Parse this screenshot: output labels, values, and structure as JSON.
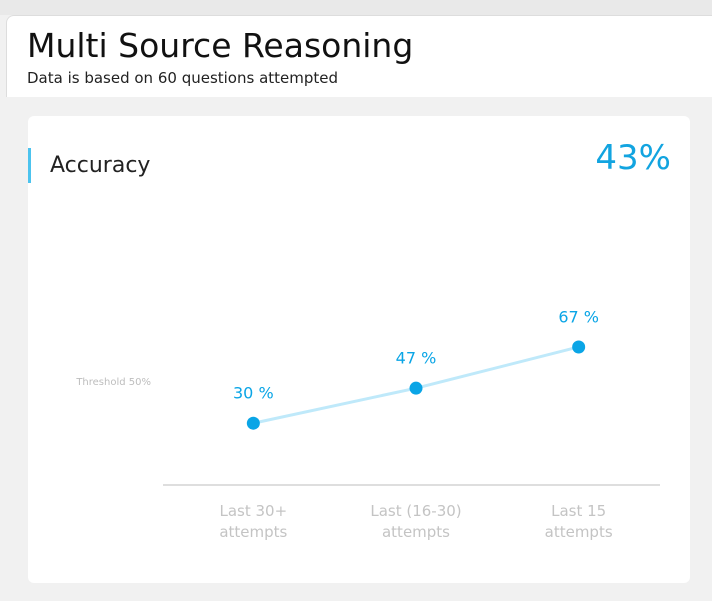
{
  "header": {
    "title": "Multi Source Reasoning",
    "subtitle": "Data is based on 60 questions attempted"
  },
  "card": {
    "label": "Accuracy",
    "overall": "43%"
  },
  "chart_data": {
    "type": "line",
    "categories": [
      "Last 30+ attempts",
      "Last (16-30) attempts",
      "Last 15 attempts"
    ],
    "values": [
      30,
      47,
      67
    ],
    "value_labels": [
      "30 %",
      "47 %",
      "67 %"
    ],
    "color": "#0aa5e6",
    "line_color": "#bfe9fa",
    "ylim": [
      0,
      100
    ],
    "threshold": {
      "value": 50,
      "label": "Threshold 50%"
    }
  }
}
